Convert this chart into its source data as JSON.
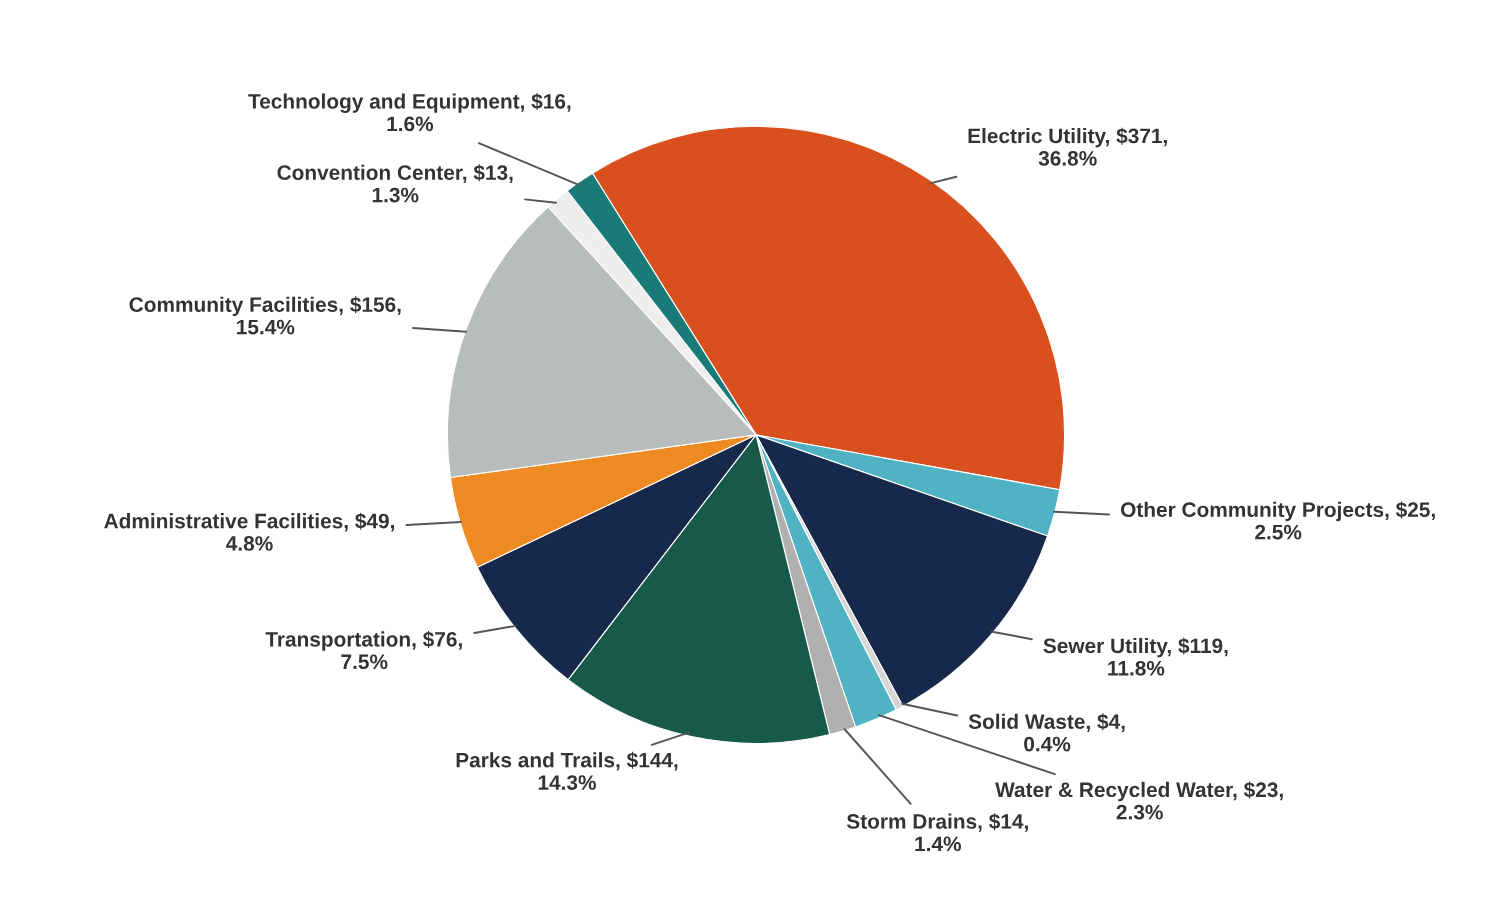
{
  "chart_data": {
    "type": "pie",
    "categories": [
      "Electric Utility",
      "Other Community Projects",
      "Sewer Utility",
      "Solid Waste",
      "Water & Recycled Water",
      "Storm Drains",
      "Parks and Trails",
      "Transportation",
      "Administrative Facilities",
      "Community Facilities",
      "Convention Center",
      "Technology and Equipment"
    ],
    "values": [
      371,
      25,
      119,
      4,
      23,
      14,
      144,
      76,
      49,
      156,
      13,
      16
    ],
    "value_labels": [
      "$371, 36.8%",
      "$25, 2.5%",
      "$119, 11.8%",
      "$4, 0.4%",
      "$23, 2.3%",
      "$14, 1.4%",
      "$144, 14.3%",
      "$76, 7.5%",
      "$49, 4.8%",
      "$156, 15.4%",
      "$13, 1.3%",
      "$16, 1.6%"
    ],
    "colors": [
      "#d9501e",
      "#4fb3c4",
      "#16294a",
      "#d6d6d6",
      "#4fb3c4",
      "#b0b0b0",
      "#175a4a",
      "#16294a",
      "#ee8a22",
      "#b8bcbc",
      "#eeeeee",
      "#1a7a78"
    ]
  }
}
